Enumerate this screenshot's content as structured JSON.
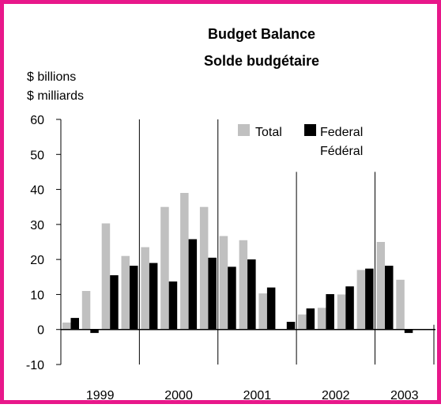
{
  "chart_data": {
    "type": "bar",
    "title": "Budget Balance",
    "subtitle": "Solde budgétaire",
    "ylabel": "$ billions",
    "ylabel_fr": "$ milliards",
    "ylim": [
      -10,
      60
    ],
    "yticks": [
      "60",
      "50",
      "40",
      "30",
      "20",
      "10",
      "0",
      "-10"
    ],
    "ytick_values": [
      60,
      50,
      40,
      30,
      20,
      10,
      0,
      -10
    ],
    "year_labels": [
      "1999",
      "2000",
      "2001",
      "2002",
      "2003"
    ],
    "legend_position": "top-right",
    "series": [
      {
        "name": "Total",
        "color": "#c0c0c0",
        "values": [
          2,
          11,
          30.3,
          21,
          23.5,
          35,
          39,
          35,
          26.7,
          25.5,
          10.3,
          0,
          4.3,
          6.2,
          10,
          17,
          25,
          14.2,
          null
        ]
      },
      {
        "name": "Federal",
        "name_fr": "Fédéral",
        "color": "#000000",
        "values": [
          3.3,
          -1,
          15.5,
          18.2,
          19,
          13.7,
          25.8,
          20.5,
          17.9,
          20,
          12,
          2.2,
          6,
          10.1,
          12.3,
          17.4,
          18.2,
          -1,
          null
        ]
      }
    ]
  }
}
